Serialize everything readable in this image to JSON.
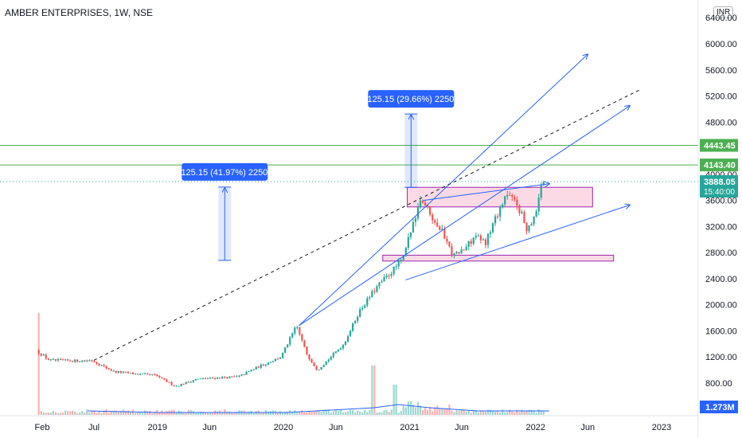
{
  "header": {
    "title": "AMBER ENTERPRISES, 1W, NSE",
    "currency": "INR"
  },
  "colors": {
    "up": "#26a69a",
    "down": "#ef5350",
    "trendline": "#2962ff",
    "horizontal": "#4caf50",
    "zone_fill": "#f8bbd0",
    "zone_border": "#9c27b0",
    "measure": "#2962ff",
    "dashed": "#131722"
  },
  "chart_data": {
    "type": "candlestick",
    "ylim": [
      400,
      6600
    ],
    "yticks": [
      800,
      1200,
      1600,
      2000,
      2400,
      2800,
      3200,
      3600,
      4000,
      4400,
      4800,
      5200,
      5600,
      6000,
      6400
    ],
    "ytick_labels": [
      "800.00",
      "1200.00",
      "1600.00",
      "2000.00",
      "2400.00",
      "2800.00",
      "3200.00",
      "3600.00",
      "4000.00",
      "4400.00",
      "4800.00",
      "5200.00",
      "5600.00",
      "6000.00",
      "6400.00"
    ],
    "xtick_labels": [
      "Feb",
      "Jul",
      "2019",
      "Jun",
      "2020",
      "Jun",
      "2021",
      "Jun",
      "2022",
      "Jun",
      "2023"
    ],
    "xtick_dates": [
      "2018-02-01",
      "2018-07-01",
      "2019-01-01",
      "2019-06-01",
      "2020-01-01",
      "2020-06-01",
      "2021-01-01",
      "2021-06-01",
      "2022-01-01",
      "2022-06-01",
      "2023-01-01"
    ],
    "price_series": [
      [
        "2018-01-22",
        1300
      ],
      [
        "2018-03-01",
        1150
      ],
      [
        "2018-05-01",
        1140
      ],
      [
        "2018-07-01",
        1150
      ],
      [
        "2018-09-01",
        980
      ],
      [
        "2018-11-01",
        940
      ],
      [
        "2019-01-01",
        920
      ],
      [
        "2019-03-01",
        750
      ],
      [
        "2019-05-01",
        860
      ],
      [
        "2019-07-01",
        880
      ],
      [
        "2019-09-01",
        900
      ],
      [
        "2019-11-01",
        1060
      ],
      [
        "2020-01-01",
        1200
      ],
      [
        "2020-02-15",
        1680
      ],
      [
        "2020-03-15",
        1250
      ],
      [
        "2020-04-15",
        1000
      ],
      [
        "2020-05-15",
        1150
      ],
      [
        "2020-07-01",
        1400
      ],
      [
        "2020-08-15",
        1900
      ],
      [
        "2020-10-01",
        2250
      ],
      [
        "2020-11-15",
        2500
      ],
      [
        "2020-12-20",
        2700
      ],
      [
        "2021-01-20",
        3300
      ],
      [
        "2021-02-10",
        3650
      ],
      [
        "2021-03-15",
        3350
      ],
      [
        "2021-04-15",
        3100
      ],
      [
        "2021-05-15",
        2750
      ],
      [
        "2021-06-15",
        2850
      ],
      [
        "2021-07-15",
        3050
      ],
      [
        "2021-08-15",
        2950
      ],
      [
        "2021-09-15",
        3350
      ],
      [
        "2021-10-15",
        3700
      ],
      [
        "2021-11-15",
        3550
      ],
      [
        "2021-12-15",
        3150
      ],
      [
        "2022-01-10",
        3450
      ],
      [
        "2022-01-25",
        3888.05
      ]
    ],
    "horizontal_lines": [
      {
        "price": 4443.45,
        "label": "4443.45"
      },
      {
        "price": 4143.4,
        "label": "4143.40"
      }
    ],
    "last_price": {
      "price": 3888.05,
      "label": "3888.05",
      "countdown": "15:40:00"
    },
    "volume_label": "1.273M",
    "measurements": [
      {
        "label": "1125.15 (41.97%) 22503",
        "from_date": "2019-07-15",
        "from_price": 2680,
        "to_price": 3805
      },
      {
        "label": "1125.15 (29.66%) 22503",
        "from_date": "2021-01-05",
        "from_price": 3800,
        "to_price": 4925
      }
    ],
    "zones": [
      {
        "from_date": "2020-12-25",
        "to_date": "2022-06-15",
        "low": 3500,
        "high": 3800
      },
      {
        "from_date": "2020-10-15",
        "to_date": "2022-08-15",
        "low": 2670,
        "high": 2760
      }
    ],
    "trendlines": [
      {
        "x1": "2020-02-15",
        "y1": 1680,
        "x2": "2022-06-01",
        "y2": 5840,
        "arrow": true
      },
      {
        "x1": "2020-02-15",
        "y1": 1680,
        "x2": "2022-10-01",
        "y2": 5050,
        "arrow": true
      },
      {
        "x1": "2020-12-20",
        "y1": 2380,
        "x2": "2022-10-01",
        "y2": 3530,
        "arrow": true
      },
      {
        "x1": "2021-02-10",
        "y1": 3600,
        "x2": "2022-02-10",
        "y2": 3855,
        "arrow": true
      },
      {
        "x1": "2018-07-01",
        "y1": 1150,
        "x2": "2022-11-01",
        "y2": 5300,
        "arrow": false,
        "dashed": true
      }
    ]
  }
}
